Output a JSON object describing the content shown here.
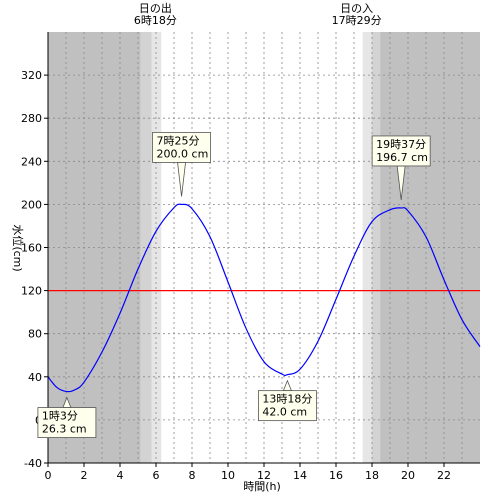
{
  "chart_data": {
    "type": "line",
    "xlabel": "時間(h)",
    "ylabel": "水位(cm)",
    "xlim": [
      0,
      24
    ],
    "ylim": [
      -40,
      360
    ],
    "x_ticks": [
      0,
      2,
      4,
      6,
      8,
      10,
      12,
      14,
      16,
      18,
      20,
      22
    ],
    "y_ticks": [
      -40,
      0,
      40,
      80,
      120,
      160,
      200,
      240,
      280,
      320
    ],
    "grid": true,
    "reference_line": {
      "y": 120,
      "color": "#ff0000"
    },
    "series": [
      {
        "color": "#0000ff",
        "x": [
          0,
          0.5,
          1.05,
          1.5,
          2,
          3,
          4,
          5,
          6,
          7,
          7.42,
          8,
          9,
          10,
          11,
          12,
          13,
          13.3,
          14,
          15,
          16,
          17,
          18,
          19,
          19.62,
          20,
          21,
          22,
          23,
          24
        ],
        "y": [
          40,
          30,
          26.3,
          28,
          35,
          63,
          99,
          140,
          175,
          197,
          200,
          196,
          170,
          128,
          85,
          54,
          42.5,
          42,
          47,
          73,
          112,
          152,
          184,
          195,
          196.7,
          194,
          170,
          130,
          93,
          68
        ]
      }
    ],
    "sun": {
      "sunrise": {
        "title": "日の出",
        "time": "6時18分",
        "x": 6.3
      },
      "sunset": {
        "title": "日の入",
        "time": "17時29分",
        "x": 17.48
      }
    },
    "annotations": [
      {
        "time": "1時3分",
        "value": "26.3 cm",
        "x": 1.05,
        "y": 26.3,
        "pos": "below"
      },
      {
        "time": "7時25分",
        "value": "200.0 cm",
        "x": 7.42,
        "y": 200.0,
        "pos": "above"
      },
      {
        "time": "13時18分",
        "value": "42.0 cm",
        "x": 13.3,
        "y": 42.0,
        "pos": "below"
      },
      {
        "time": "19時37分",
        "value": "196.7 cm",
        "x": 19.62,
        "y": 196.7,
        "pos": "above"
      }
    ],
    "colors": {
      "night": "#c0c0c0",
      "twilight_dark": "#d3d3d3",
      "twilight_light": "#e6e6e6",
      "day": "#ffffff",
      "grid": "#888888",
      "line": "#0000ff",
      "reference": "#ff0000",
      "note_bg": "#ffffee"
    }
  }
}
